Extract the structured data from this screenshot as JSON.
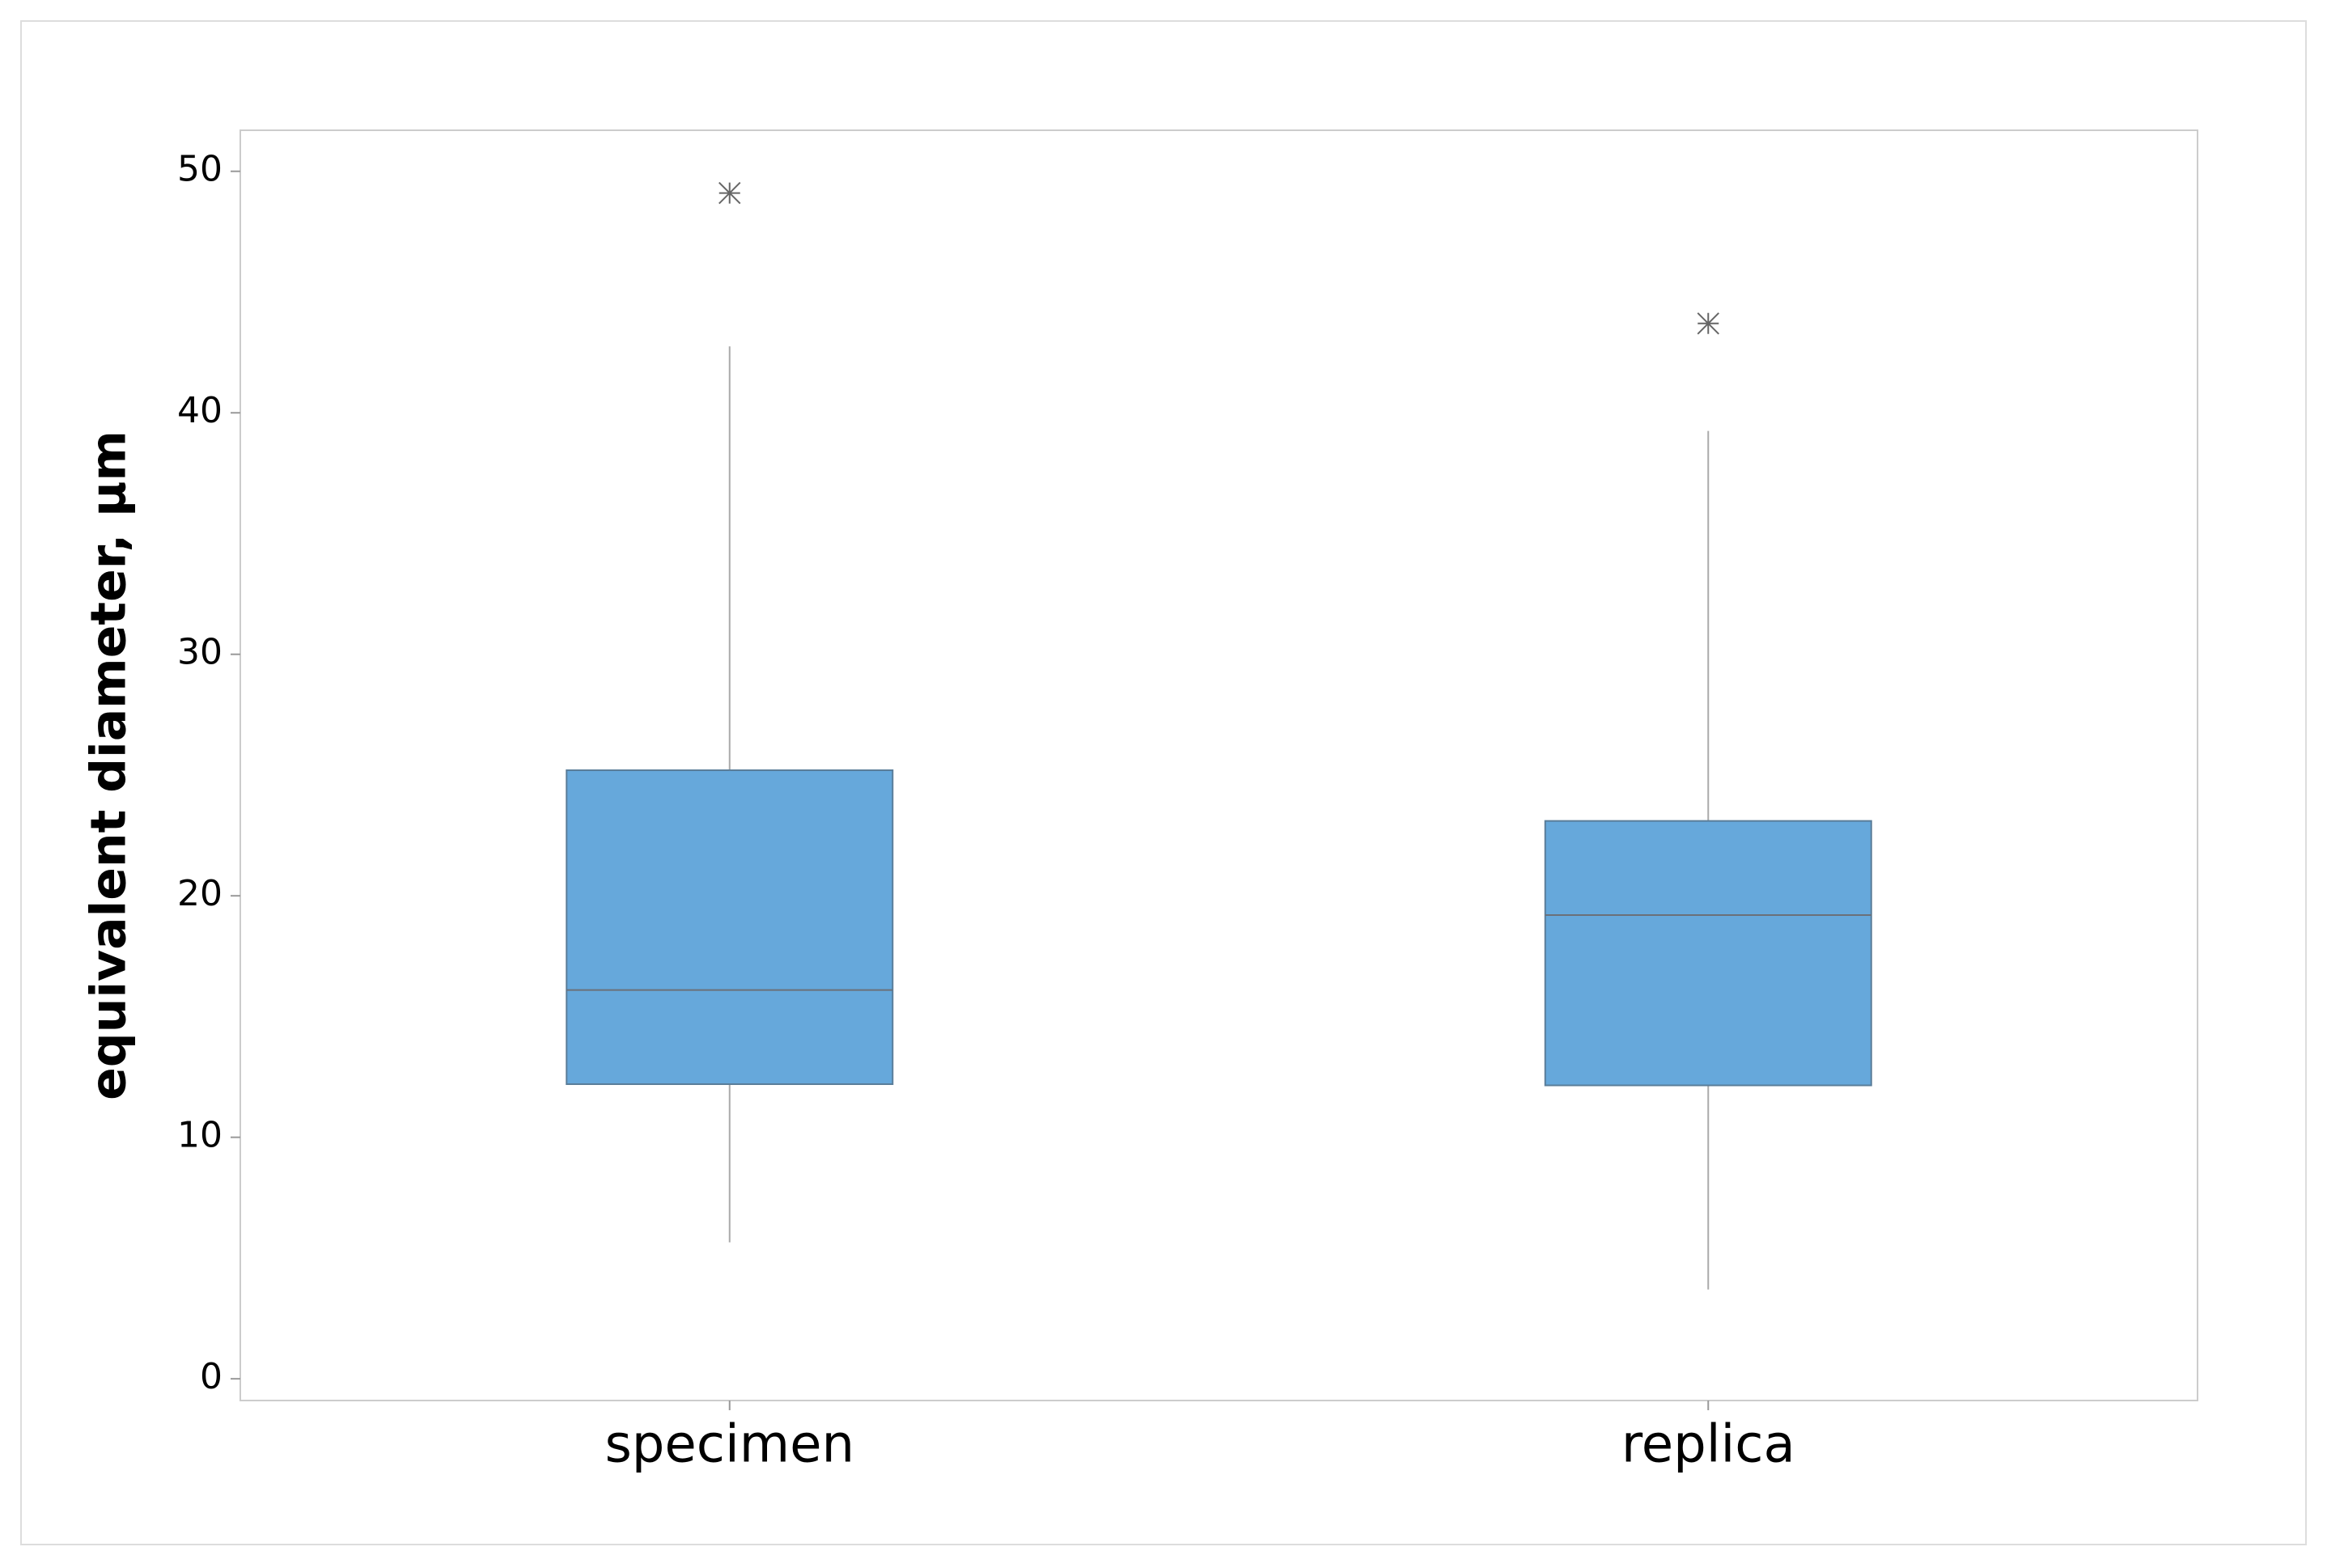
{
  "chart_data": {
    "type": "box",
    "y_label": "equivalent diameter, µm",
    "categories": [
      "specimen",
      "replica"
    ],
    "color": "#66a8db",
    "boxes": [
      {
        "whisker_low": 5.65,
        "q1": 12.2,
        "median": 16.1,
        "q3": 25.2,
        "whisker_high": 42.75,
        "outliers": [
          49.1
        ]
      },
      {
        "whisker_low": 3.7,
        "q1": 12.15,
        "median": 19.2,
        "q3": 23.1,
        "whisker_high": 39.25,
        "outliers": [
          43.7
        ]
      }
    ],
    "ylim": [
      -0.9,
      51.7
    ],
    "yticks": [
      0,
      10,
      20,
      30,
      40,
      50
    ]
  }
}
